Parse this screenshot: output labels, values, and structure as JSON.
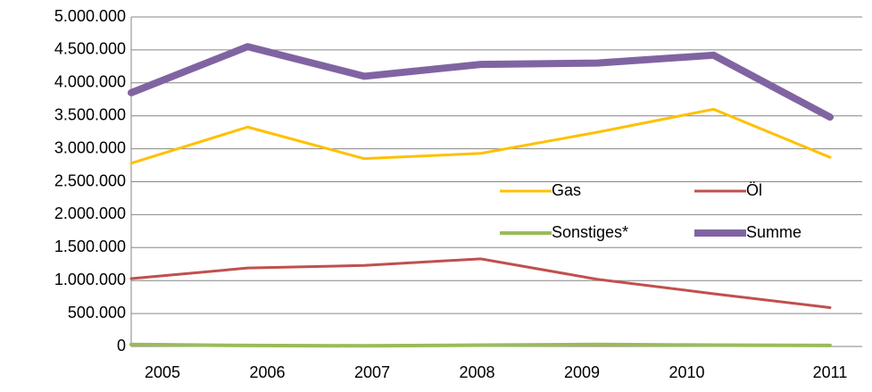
{
  "chart_data": {
    "type": "line",
    "categories": [
      "2005",
      "2006",
      "2007",
      "2008",
      "2009",
      "2010",
      "2011"
    ],
    "series": [
      {
        "name": "Gas",
        "color": "#ffc000",
        "line_width": 3,
        "values": [
          2780000,
          3330000,
          2850000,
          2930000,
          3250000,
          3600000,
          2870000
        ]
      },
      {
        "name": "Öl",
        "color": "#c0504d",
        "line_width": 3,
        "values": [
          1030000,
          1190000,
          1230000,
          1330000,
          1020000,
          800000,
          590000
        ]
      },
      {
        "name": "Sonstiges*",
        "color": "#9bbb59",
        "line_width": 4,
        "values": [
          30000,
          15000,
          10000,
          20000,
          30000,
          20000,
          15000
        ]
      },
      {
        "name": "Summe",
        "color": "#8064a2",
        "line_width": 8,
        "values": [
          3850000,
          4550000,
          4100000,
          4280000,
          4300000,
          4420000,
          3480000
        ]
      }
    ],
    "ylim": [
      0,
      5000000
    ],
    "yticks": [
      0,
      {
        "value": 500000,
        "label": "500.000"
      },
      {
        "value": 1000000,
        "label": "1.000.000"
      },
      {
        "value": 1500000,
        "label": "1.500.000"
      },
      {
        "value": 2000000,
        "label": "2.000.000"
      },
      {
        "value": 2500000,
        "label": "2.500.000"
      },
      {
        "value": 3000000,
        "label": "3.000.000"
      },
      {
        "value": 3500000,
        "label": "3.500.000"
      },
      {
        "value": 4000000,
        "label": "4.000.000"
      },
      {
        "value": 4500000,
        "label": "4.500.000"
      },
      {
        "value": 5000000,
        "label": "5.000.000"
      }
    ],
    "grid": true
  }
}
